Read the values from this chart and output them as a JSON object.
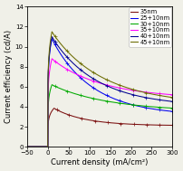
{
  "xlabel": "Current density (mA/cm²)",
  "ylabel": "Current efficiency (cd/A)",
  "xlim": [
    -50,
    300
  ],
  "ylim": [
    0,
    14
  ],
  "xticks": [
    -50,
    0,
    50,
    100,
    150,
    200,
    250,
    300
  ],
  "yticks": [
    0,
    2,
    4,
    6,
    8,
    10,
    12,
    14
  ],
  "series": [
    {
      "label": "35nm",
      "color": "#7B1010",
      "peak_x": 15,
      "peak_y": 3.85,
      "end_y": 2.1,
      "decay_k": 0.012
    },
    {
      "label": "25+10nm",
      "color": "#0000EE",
      "peak_x": 10,
      "peak_y": 10.8,
      "end_y": 3.1,
      "decay_k": 0.009
    },
    {
      "label": "30+10nm",
      "color": "#00AA00",
      "peak_x": 10,
      "peak_y": 6.2,
      "end_y": 3.5,
      "decay_k": 0.006
    },
    {
      "label": "35+10nm",
      "color": "#FF00FF",
      "peak_x": 10,
      "peak_y": 8.8,
      "end_y": 4.8,
      "decay_k": 0.007
    },
    {
      "label": "40+10nm",
      "color": "#000090",
      "peak_x": 10,
      "peak_y": 11.0,
      "end_y": 4.0,
      "decay_k": 0.008
    },
    {
      "label": "45+10nm",
      "color": "#6B6B00",
      "peak_x": 10,
      "peak_y": 11.5,
      "end_y": 4.2,
      "decay_k": 0.007
    }
  ],
  "background_color": "#f0f0e8",
  "legend_fontsize": 4.8,
  "axis_fontsize": 6.0,
  "tick_fontsize": 5.0,
  "linewidth": 0.75,
  "marker_size": 2.5,
  "marker_ew": 0.5
}
